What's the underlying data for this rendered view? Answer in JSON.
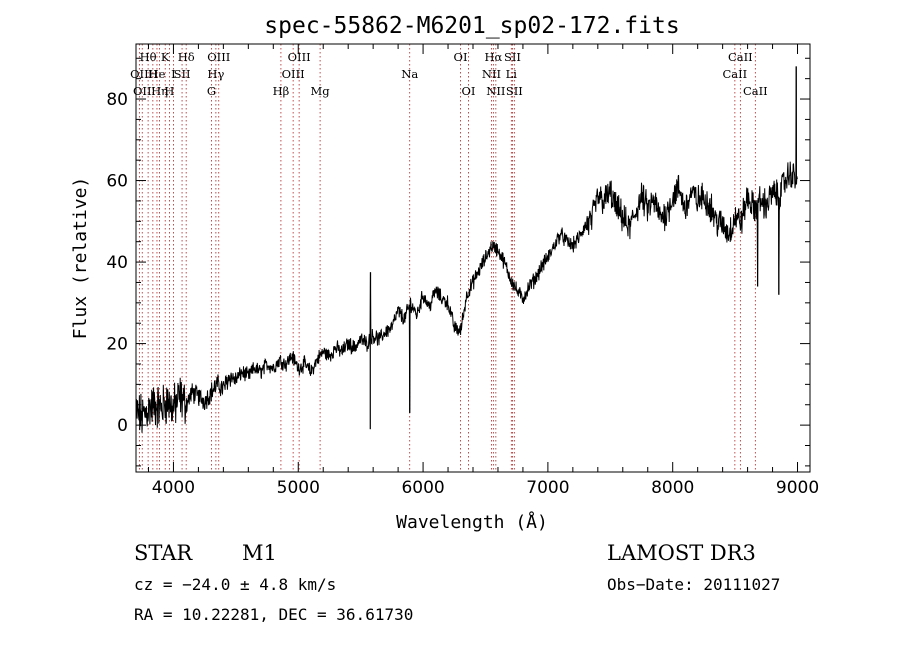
{
  "chart_data": {
    "type": "line",
    "title": "spec-55862-M6201_sp02-172.fits",
    "xlabel": "Wavelength (Å)",
    "ylabel": "Flux (relative)",
    "xlim": [
      3700,
      9100
    ],
    "ylim": [
      -11.5,
      93.5
    ],
    "xticks": [
      4000,
      5000,
      6000,
      7000,
      8000,
      9000
    ],
    "yticks": [
      0,
      20,
      40,
      60,
      80
    ],
    "xtick_labels": [
      "4000",
      "5000",
      "6000",
      "7000",
      "8000",
      "9000"
    ],
    "ytick_labels": [
      "0",
      "20",
      "40",
      "60",
      "80"
    ],
    "series": [
      {
        "name": "flux",
        "anchors_x": [
          3700,
          3750,
          3800,
          3850,
          3900,
          3950,
          4000,
          4050,
          4100,
          4150,
          4200,
          4250,
          4300,
          4350,
          4400,
          4450,
          4500,
          4550,
          4600,
          4650,
          4700,
          4750,
          4800,
          4850,
          4900,
          4950,
          5000,
          5050,
          5100,
          5150,
          5200,
          5250,
          5300,
          5350,
          5400,
          5450,
          5500,
          5550,
          5600,
          5650,
          5700,
          5750,
          5800,
          5850,
          5900,
          5950,
          6000,
          6050,
          6100,
          6150,
          6200,
          6250,
          6300,
          6350,
          6400,
          6450,
          6500,
          6550,
          6600,
          6650,
          6700,
          6750,
          6800,
          6850,
          6900,
          6950,
          7000,
          7050,
          7100,
          7150,
          7200,
          7250,
          7300,
          7350,
          7400,
          7450,
          7500,
          7550,
          7600,
          7650,
          7700,
          7750,
          7800,
          7850,
          7900,
          7950,
          8000,
          8050,
          8100,
          8150,
          8200,
          8250,
          8300,
          8350,
          8400,
          8450,
          8500,
          8550,
          8600,
          8650,
          8700,
          8750,
          8800,
          8850,
          8900,
          8950,
          9000
        ],
        "anchors_y": [
          3,
          2,
          4,
          5,
          4,
          6,
          4,
          7,
          5,
          8,
          7,
          6,
          8,
          10,
          9,
          12,
          11,
          13,
          12,
          14,
          13,
          15,
          14,
          16,
          15,
          17,
          14,
          15,
          13,
          16,
          18,
          17,
          19,
          18,
          20,
          19,
          21,
          20,
          22,
          21,
          23,
          24,
          28,
          26,
          30,
          27,
          32,
          29,
          33,
          31,
          30,
          24,
          23,
          32,
          35,
          38,
          41,
          44,
          43,
          40,
          36,
          33,
          31,
          34,
          36,
          39,
          41,
          44,
          47,
          45,
          44,
          46,
          49,
          50,
          56,
          55,
          57,
          53,
          51,
          48,
          52,
          56,
          53,
          55,
          51,
          52,
          56,
          58,
          53,
          57,
          55,
          56,
          54,
          50,
          49,
          47,
          51,
          50,
          56,
          53,
          55,
          54,
          57,
          56,
          60,
          62,
          59
        ]
      }
    ],
    "spikes": [
      {
        "x": 5577,
        "y": -1
      },
      {
        "x": 5579,
        "y": 37.5
      },
      {
        "x": 5893,
        "y": 3
      },
      {
        "x": 8680,
        "y": 34
      },
      {
        "x": 8850,
        "y": 32
      },
      {
        "x": 8990,
        "y": 88
      }
    ],
    "lines": [
      {
        "x": 3727,
        "name": "OII",
        "row": 2
      },
      {
        "x": 3750,
        "name": "OII",
        "row": 3
      },
      {
        "x": 3797,
        "name": "Hθ",
        "row": 1
      },
      {
        "x": 3835,
        "name": "H",
        "row": 2
      },
      {
        "x": 3889,
        "name": "Hη",
        "row": 3
      },
      {
        "x": 3868,
        "name": "He",
        "row": 2
      },
      {
        "x": 3934,
        "name": "K",
        "row": 1
      },
      {
        "x": 3968,
        "name": "H",
        "row": 3
      },
      {
        "x": 4000,
        "name": "I",
        "row": 2
      },
      {
        "x": 4069,
        "name": "SII",
        "row": 2
      },
      {
        "x": 4102,
        "name": "Hδ",
        "row": 1
      },
      {
        "x": 4305,
        "name": "G",
        "row": 3
      },
      {
        "x": 4340,
        "name": "Hγ",
        "row": 2
      },
      {
        "x": 4363,
        "name": "OIII",
        "row": 1
      },
      {
        "x": 4861,
        "name": "Hβ",
        "row": 3
      },
      {
        "x": 4959,
        "name": "OIII",
        "row": 2
      },
      {
        "x": 5007,
        "name": "OIII",
        "row": 1
      },
      {
        "x": 5175,
        "name": "Mg",
        "row": 3
      },
      {
        "x": 5893,
        "name": "Na",
        "row": 2
      },
      {
        "x": 6300,
        "name": "OI",
        "row": 1
      },
      {
        "x": 6364,
        "name": "OI",
        "row": 3
      },
      {
        "x": 6548,
        "name": "NII",
        "row": 2
      },
      {
        "x": 6563,
        "name": "Hα",
        "row": 1
      },
      {
        "x": 6583,
        "name": "NII",
        "row": 3
      },
      {
        "x": 6707,
        "name": "Li",
        "row": 2
      },
      {
        "x": 6716,
        "name": "SII",
        "row": 1
      },
      {
        "x": 6731,
        "name": "SII",
        "row": 3
      },
      {
        "x": 8498,
        "name": "CaII",
        "row": 2
      },
      {
        "x": 8542,
        "name": "CaII",
        "row": 1
      },
      {
        "x": 8662,
        "name": "CaII",
        "row": 3
      }
    ]
  },
  "info": {
    "class_label": "STAR",
    "subclass_label": "M1",
    "survey_label": "LAMOST DR3",
    "cz_text": "cz = −24.0 ± 4.8 km/s",
    "obs_date_text": "Obs−Date: 20111027",
    "radec_text": "RA =  10.22281, DEC =  36.61730"
  },
  "colors": {
    "line_marker": "#b22222",
    "spectrum": "#000000"
  }
}
